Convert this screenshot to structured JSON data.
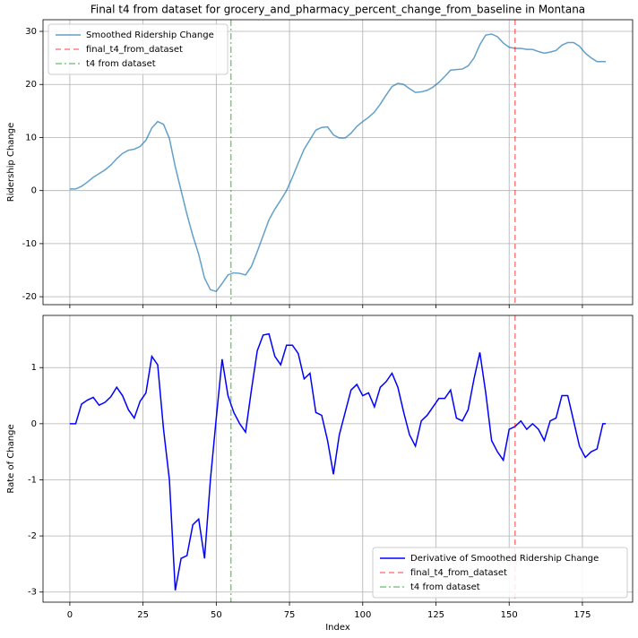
{
  "chart_data": [
    {
      "type": "line",
      "title": "Final t4 from dataset for grocery_and_pharmacy_percent_change_from_baseline in Montana",
      "ylabel": "Ridership Change",
      "x": [
        0,
        2,
        4,
        6,
        8,
        10,
        12,
        14,
        16,
        18,
        20,
        22,
        24,
        26,
        28,
        30,
        32,
        34,
        36,
        38,
        40,
        42,
        44,
        46,
        48,
        50,
        52,
        54,
        56,
        58,
        60,
        62,
        64,
        66,
        68,
        70,
        72,
        74,
        76,
        78,
        80,
        82,
        84,
        86,
        88,
        90,
        92,
        94,
        96,
        98,
        100,
        102,
        104,
        106,
        108,
        110,
        112,
        114,
        116,
        118,
        120,
        122,
        124,
        126,
        128,
        130,
        132,
        134,
        136,
        138,
        140,
        142,
        144,
        146,
        148,
        150,
        152,
        154,
        156,
        158,
        160,
        162,
        164,
        166,
        168,
        170,
        172,
        174,
        176,
        178,
        180,
        182,
        183
      ],
      "xlim": [
        -9.15,
        192.15
      ],
      "ylim": [
        -21.5,
        32.2
      ],
      "yticks": [
        -20,
        -10,
        0,
        10,
        20,
        30
      ],
      "grid": true,
      "legend": "upper left",
      "series": [
        {
          "name": "Smoothed Ridership Change",
          "color": "#1f77b4",
          "alpha": 0.7,
          "dash": "solid",
          "values": [
            0.3,
            0.3,
            0.8,
            1.6,
            2.5,
            3.2,
            3.9,
            4.8,
            6.0,
            7.0,
            7.6,
            7.8,
            8.3,
            9.5,
            11.8,
            13.0,
            12.5,
            9.8,
            4.5,
            0,
            -4.5,
            -8.5,
            -12,
            -16.5,
            -18.7,
            -19,
            -17.5,
            -15.9,
            -15.5,
            -15.6,
            -15.9,
            -14.3,
            -11.5,
            -8.5,
            -5.5,
            -3.5,
            -1.8,
            0,
            2.5,
            5.2,
            7.8,
            9.6,
            11.4,
            11.9,
            12.0,
            10.5,
            9.9,
            9.9,
            10.8,
            12.1,
            13.0,
            13.8,
            14.8,
            16.3,
            18.0,
            19.6,
            20.2,
            20.0,
            19.2,
            18.5,
            18.6,
            18.9,
            19.5,
            20.4,
            21.5,
            22.7,
            22.8,
            22.9,
            23.5,
            25.0,
            27.5,
            29.3,
            29.5,
            29.0,
            27.8,
            27.0,
            26.8,
            26.8,
            26.6,
            26.6,
            26.2,
            25.9,
            26.1,
            26.4,
            27.4,
            27.9,
            27.9,
            27.2,
            25.9,
            25.0,
            24.3,
            24.3,
            24.3
          ]
        }
      ],
      "vlines": [
        {
          "name": "final_t4_from_dataset",
          "x": 152,
          "color": "red",
          "alpha": 0.5,
          "dash": "dashed"
        },
        {
          "name": "t4 from dataset",
          "x": 55,
          "color": "#2ca02c",
          "alpha": 0.6,
          "dash": "dashdot"
        }
      ]
    },
    {
      "type": "line",
      "xlabel": "Index",
      "ylabel": "Rate of Change",
      "x": [
        0,
        2,
        4,
        6,
        8,
        10,
        12,
        14,
        16,
        18,
        20,
        22,
        24,
        26,
        28,
        30,
        32,
        34,
        36,
        38,
        40,
        42,
        44,
        46,
        48,
        50,
        52,
        54,
        56,
        58,
        60,
        62,
        64,
        66,
        68,
        70,
        72,
        74,
        76,
        78,
        80,
        82,
        84,
        86,
        88,
        90,
        92,
        94,
        96,
        98,
        100,
        102,
        104,
        106,
        108,
        110,
        112,
        114,
        116,
        118,
        120,
        122,
        124,
        126,
        128,
        130,
        132,
        134,
        136,
        138,
        140,
        142,
        144,
        146,
        148,
        150,
        152,
        154,
        156,
        158,
        160,
        162,
        164,
        166,
        168,
        170,
        172,
        174,
        176,
        178,
        180,
        182,
        183
      ],
      "xlim": [
        -9.15,
        192.15
      ],
      "xticks": [
        0,
        25,
        50,
        75,
        100,
        125,
        150,
        175
      ],
      "ylim": [
        -3.18,
        1.93
      ],
      "yticks": [
        -3,
        -2,
        -1,
        0,
        1
      ],
      "grid": true,
      "legend": "lower right",
      "series": [
        {
          "name": "Derivative of Smoothed Ridership Change",
          "color": "blue",
          "alpha": 1,
          "dash": "solid",
          "values": [
            0,
            0,
            0.35,
            0.42,
            0.47,
            0.33,
            0.38,
            0.48,
            0.65,
            0.5,
            0.25,
            0.1,
            0.4,
            0.55,
            1.2,
            1.05,
            -0.1,
            -1.0,
            -2.97,
            -2.4,
            -2.35,
            -1.8,
            -1.7,
            -2.4,
            -1.0,
            0.1,
            1.15,
            0.5,
            0.2,
            0,
            -0.15,
            0.6,
            1.3,
            1.58,
            1.6,
            1.2,
            1.05,
            1.4,
            1.4,
            1.25,
            0.8,
            0.9,
            0.2,
            0.15,
            -0.3,
            -0.9,
            -0.2,
            0.2,
            0.6,
            0.7,
            0.5,
            0.55,
            0.3,
            0.65,
            0.75,
            0.9,
            0.65,
            0.2,
            -0.2,
            -0.4,
            0.05,
            0.15,
            0.3,
            0.45,
            0.45,
            0.6,
            0.1,
            0.05,
            0.25,
            0.8,
            1.27,
            0.55,
            -0.3,
            -0.5,
            -0.65,
            -0.1,
            -0.05,
            0.05,
            -0.1,
            0,
            -0.1,
            -0.3,
            0.05,
            0.1,
            0.5,
            0.5,
            0.05,
            -0.4,
            -0.6,
            -0.5,
            -0.45,
            0,
            0
          ]
        }
      ],
      "vlines": [
        {
          "name": "final_t4_from_dataset",
          "x": 152,
          "color": "red",
          "alpha": 0.5,
          "dash": "dashed"
        },
        {
          "name": "t4 from dataset",
          "x": 55,
          "color": "#2ca02c",
          "alpha": 0.6,
          "dash": "dashdot"
        }
      ]
    }
  ]
}
